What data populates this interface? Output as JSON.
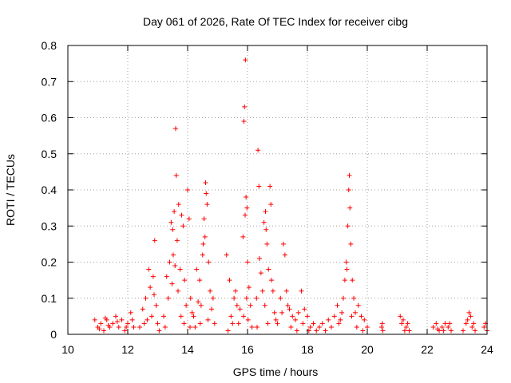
{
  "chart_data": {
    "type": "scatter",
    "title": "Day 061 of 2026, Rate Of TEC Index for receiver cibg",
    "xlabel": "GPS time / hours",
    "ylabel": "ROTI / TECUs",
    "xlim": [
      10,
      24
    ],
    "ylim": [
      0,
      0.8
    ],
    "x_ticks": [
      "10",
      "12",
      "14",
      "16",
      "18",
      "20",
      "22",
      "24"
    ],
    "y_ticks": [
      "0",
      "0.1",
      "0.2",
      "0.3",
      "0.4",
      "0.5",
      "0.6",
      "0.7",
      "0.8"
    ],
    "grid": true,
    "marker": "+",
    "color": "#ff0000",
    "points": [
      [
        10.9,
        0.04
      ],
      [
        11.0,
        0.02
      ],
      [
        11.1,
        0.03
      ],
      [
        11.2,
        0.01
      ],
      [
        11.3,
        0.04
      ],
      [
        11.4,
        0.02
      ],
      [
        11.5,
        0.03
      ],
      [
        11.6,
        0.05
      ],
      [
        11.7,
        0.02
      ],
      [
        11.8,
        0.04
      ],
      [
        11.9,
        0.01
      ],
      [
        12.0,
        0.03
      ],
      [
        12.1,
        0.06
      ],
      [
        12.2,
        0.02
      ],
      [
        11.05,
        0.015
      ],
      [
        11.35,
        0.025
      ],
      [
        11.65,
        0.035
      ],
      [
        11.95,
        0.02
      ],
      [
        12.15,
        0.04
      ],
      [
        11.25,
        0.045
      ],
      [
        12.4,
        0.02
      ],
      [
        12.5,
        0.07
      ],
      [
        12.6,
        0.1
      ],
      [
        12.7,
        0.18
      ],
      [
        12.75,
        0.13
      ],
      [
        12.8,
        0.05
      ],
      [
        12.85,
        0.16
      ],
      [
        12.9,
        0.26
      ],
      [
        12.95,
        0.08
      ],
      [
        13.0,
        0.03
      ],
      [
        12.65,
        0.04
      ],
      [
        12.55,
        0.03
      ],
      [
        12.88,
        0.11
      ],
      [
        13.05,
        0.01
      ],
      [
        13.2,
        0.05
      ],
      [
        13.3,
        0.16
      ],
      [
        13.35,
        0.1
      ],
      [
        13.4,
        0.2
      ],
      [
        13.45,
        0.31
      ],
      [
        13.5,
        0.29
      ],
      [
        13.55,
        0.34
      ],
      [
        13.6,
        0.57
      ],
      [
        13.62,
        0.44
      ],
      [
        13.65,
        0.26
      ],
      [
        13.7,
        0.36
      ],
      [
        13.75,
        0.18
      ],
      [
        13.8,
        0.33
      ],
      [
        13.85,
        0.3
      ],
      [
        13.9,
        0.15
      ],
      [
        13.95,
        0.08
      ],
      [
        14.0,
        0.4
      ],
      [
        14.05,
        0.32
      ],
      [
        14.1,
        0.1
      ],
      [
        14.15,
        0.06
      ],
      [
        13.52,
        0.22
      ],
      [
        13.58,
        0.19
      ],
      [
        13.68,
        0.12
      ],
      [
        13.78,
        0.05
      ],
      [
        13.25,
        0.02
      ],
      [
        13.88,
        0.03
      ],
      [
        14.08,
        0.02
      ],
      [
        13.48,
        0.14
      ],
      [
        14.2,
        0.05
      ],
      [
        14.3,
        0.18
      ],
      [
        14.35,
        0.09
      ],
      [
        14.4,
        0.15
      ],
      [
        14.45,
        0.08
      ],
      [
        14.5,
        0.22
      ],
      [
        14.55,
        0.32
      ],
      [
        14.6,
        0.42
      ],
      [
        14.62,
        0.39
      ],
      [
        14.65,
        0.36
      ],
      [
        14.7,
        0.2
      ],
      [
        14.75,
        0.12
      ],
      [
        14.8,
        0.07
      ],
      [
        14.85,
        0.1
      ],
      [
        14.9,
        0.03
      ],
      [
        14.58,
        0.27
      ],
      [
        14.52,
        0.25
      ],
      [
        14.68,
        0.04
      ],
      [
        14.25,
        0.02
      ],
      [
        14.42,
        0.03
      ],
      [
        15.3,
        0.22
      ],
      [
        15.4,
        0.15
      ],
      [
        15.45,
        0.05
      ],
      [
        15.5,
        0.03
      ],
      [
        15.55,
        0.1
      ],
      [
        15.6,
        0.12
      ],
      [
        15.65,
        0.08
      ],
      [
        15.7,
        0.03
      ],
      [
        15.75,
        0.07
      ],
      [
        15.35,
        0.01
      ],
      [
        15.85,
        0.27
      ],
      [
        15.88,
        0.59
      ],
      [
        15.9,
        0.63
      ],
      [
        15.93,
        0.76
      ],
      [
        15.95,
        0.38
      ],
      [
        15.98,
        0.35
      ],
      [
        16.0,
        0.2
      ],
      [
        16.05,
        0.13
      ],
      [
        16.1,
        0.08
      ],
      [
        16.15,
        0.02
      ],
      [
        15.92,
        0.33
      ],
      [
        15.97,
        0.1
      ],
      [
        16.02,
        0.04
      ],
      [
        15.87,
        0.05
      ],
      [
        16.3,
        0.1
      ],
      [
        16.35,
        0.51
      ],
      [
        16.38,
        0.41
      ],
      [
        16.4,
        0.21
      ],
      [
        16.45,
        0.17
      ],
      [
        16.5,
        0.12
      ],
      [
        16.55,
        0.31
      ],
      [
        16.6,
        0.34
      ],
      [
        16.62,
        0.29
      ],
      [
        16.65,
        0.25
      ],
      [
        16.7,
        0.18
      ],
      [
        16.75,
        0.41
      ],
      [
        16.78,
        0.36
      ],
      [
        16.8,
        0.15
      ],
      [
        16.85,
        0.12
      ],
      [
        16.9,
        0.06
      ],
      [
        16.95,
        0.04
      ],
      [
        16.58,
        0.08
      ],
      [
        16.68,
        0.03
      ],
      [
        16.32,
        0.02
      ],
      [
        17.0,
        0.03
      ],
      [
        17.1,
        0.1
      ],
      [
        17.15,
        0.06
      ],
      [
        17.2,
        0.25
      ],
      [
        17.25,
        0.22
      ],
      [
        17.3,
        0.12
      ],
      [
        17.35,
        0.08
      ],
      [
        17.4,
        0.07
      ],
      [
        17.5,
        0.05
      ],
      [
        17.6,
        0.04
      ],
      [
        17.7,
        0.06
      ],
      [
        17.8,
        0.12
      ],
      [
        17.9,
        0.07
      ],
      [
        18.0,
        0.05
      ],
      [
        18.1,
        0.02
      ],
      [
        18.2,
        0.03
      ],
      [
        17.45,
        0.02
      ],
      [
        17.65,
        0.01
      ],
      [
        17.85,
        0.03
      ],
      [
        18.05,
        0.01
      ],
      [
        18.3,
        0.01
      ],
      [
        18.4,
        0.02
      ],
      [
        18.5,
        0.03
      ],
      [
        18.6,
        0.01
      ],
      [
        18.7,
        0.04
      ],
      [
        18.8,
        0.02
      ],
      [
        18.9,
        0.05
      ],
      [
        19.0,
        0.08
      ],
      [
        19.05,
        0.03
      ],
      [
        19.1,
        0.04
      ],
      [
        19.15,
        0.06
      ],
      [
        19.2,
        0.1
      ],
      [
        19.25,
        0.15
      ],
      [
        19.3,
        0.2
      ],
      [
        19.35,
        0.3
      ],
      [
        19.38,
        0.4
      ],
      [
        19.4,
        0.44
      ],
      [
        19.42,
        0.35
      ],
      [
        19.45,
        0.25
      ],
      [
        19.5,
        0.15
      ],
      [
        19.55,
        0.1
      ],
      [
        19.6,
        0.06
      ],
      [
        19.7,
        0.08
      ],
      [
        19.8,
        0.05
      ],
      [
        19.9,
        0.04
      ],
      [
        20.0,
        0.02
      ],
      [
        19.32,
        0.18
      ],
      [
        19.48,
        0.05
      ],
      [
        19.65,
        0.02
      ],
      [
        19.85,
        0.01
      ],
      [
        20.5,
        0.03
      ],
      [
        20.52,
        0.01
      ],
      [
        20.48,
        0.02
      ],
      [
        21.1,
        0.05
      ],
      [
        21.2,
        0.04
      ],
      [
        21.3,
        0.02
      ],
      [
        21.4,
        0.01
      ],
      [
        21.15,
        0.03
      ],
      [
        21.25,
        0.01
      ],
      [
        21.35,
        0.03
      ],
      [
        22.2,
        0.02
      ],
      [
        22.3,
        0.03
      ],
      [
        22.4,
        0.01
      ],
      [
        22.5,
        0.02
      ],
      [
        22.6,
        0.03
      ],
      [
        22.7,
        0.02
      ],
      [
        22.8,
        0.01
      ],
      [
        22.35,
        0.015
      ],
      [
        22.55,
        0.01
      ],
      [
        22.75,
        0.03
      ],
      [
        23.2,
        0.01
      ],
      [
        23.3,
        0.03
      ],
      [
        23.4,
        0.06
      ],
      [
        23.45,
        0.05
      ],
      [
        23.5,
        0.02
      ],
      [
        23.6,
        0.01
      ],
      [
        23.35,
        0.04
      ],
      [
        23.55,
        0.03
      ],
      [
        23.9,
        0.02
      ],
      [
        24.0,
        0.01
      ],
      [
        23.95,
        0.03
      ]
    ]
  }
}
